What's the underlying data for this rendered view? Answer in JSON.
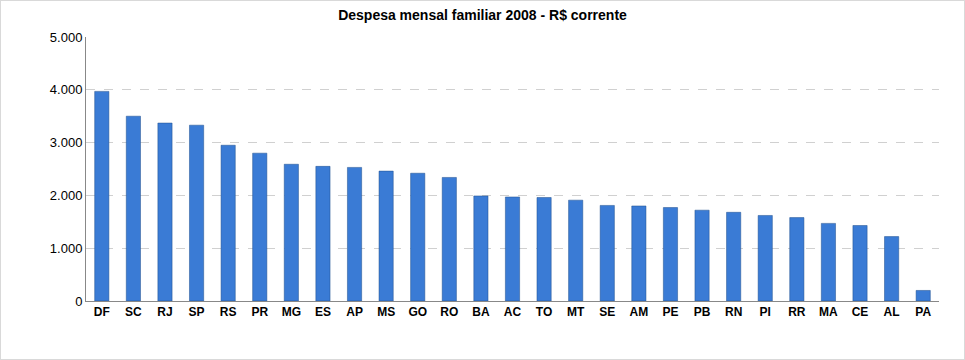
{
  "chart_data": {
    "type": "bar",
    "title": "Despesa mensal familiar 2008 - R$ corrente",
    "categories": [
      "DF",
      "SC",
      "RJ",
      "SP",
      "RS",
      "PR",
      "MG",
      "ES",
      "AP",
      "MS",
      "GO",
      "RO",
      "BA",
      "AC",
      "TO",
      "MT",
      "SE",
      "AM",
      "PE",
      "PB",
      "RN",
      "PI",
      "RR",
      "MA",
      "CE",
      "AL",
      "PA"
    ],
    "values": [
      3970,
      3500,
      3370,
      3330,
      2950,
      2800,
      2590,
      2550,
      2530,
      2460,
      2420,
      2340,
      1990,
      1970,
      1960,
      1910,
      1810,
      1800,
      1770,
      1720,
      1680,
      1620,
      1580,
      1470,
      1430,
      1220,
      200
    ],
    "color": "#3a7bd5",
    "ylim": [
      0,
      5000
    ],
    "yticks": [
      0,
      {
        "value": 1000,
        "label": "1.000"
      },
      {
        "value": 2000,
        "label": "2.000"
      },
      {
        "value": 3000,
        "label": "3.000"
      },
      {
        "value": 4000,
        "label": "4.000"
      },
      {
        "value": 5000,
        "label": "5.000"
      }
    ],
    "grid": true
  }
}
